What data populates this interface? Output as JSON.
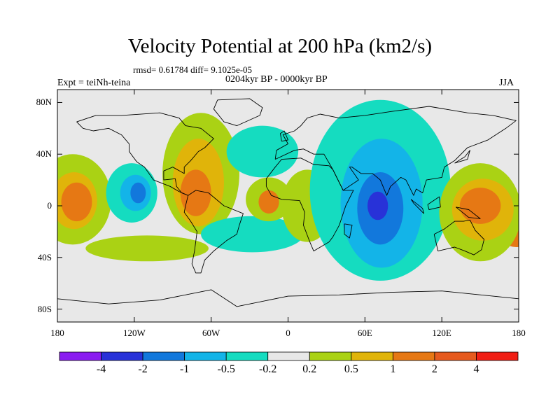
{
  "title": "Velocity Potential at 200 hPa (km2/s)",
  "stats_line": "rmsd= 0.61784 diff= 9.1025e-05",
  "period_line": "0204kyr BP - 0000kyr BP",
  "experiment_label": "Expt = teiNh-teina",
  "season_label": "JJA",
  "map": {
    "projection": "cylindrical-equidistant",
    "lon_range": [
      -180,
      180
    ],
    "lat_range": [
      -90,
      90
    ],
    "background_color": "#e8e8e8",
    "lat_ticks": [
      {
        "lat": 80,
        "label": "80N"
      },
      {
        "lat": 40,
        "label": "40N"
      },
      {
        "lat": 0,
        "label": "0"
      },
      {
        "lat": -40,
        "label": "40S"
      },
      {
        "lat": -80,
        "label": "80S"
      }
    ],
    "lon_ticks": [
      {
        "lon": -180,
        "label": "180"
      },
      {
        "lon": -120,
        "label": "120W"
      },
      {
        "lon": -60,
        "label": "60W"
      },
      {
        "lon": 0,
        "label": "0"
      },
      {
        "lon": 60,
        "label": "60E"
      },
      {
        "lon": 120,
        "label": "120E"
      },
      {
        "lon": 180,
        "label": "180"
      }
    ]
  },
  "colorbar": {
    "labels": [
      "-4",
      "-2",
      "-1",
      "-0.5",
      "-0.2",
      "0.2",
      "0.5",
      "1",
      "2",
      "4"
    ],
    "colors": [
      "#8a1cf0",
      "#2832d8",
      "#1278dc",
      "#13b4e8",
      "#15dcc0",
      "#e8e8e8",
      "#aad214",
      "#e0b40a",
      "#e67814",
      "#e65a1e",
      "#f01e14"
    ]
  },
  "anomaly_regions": [
    {
      "name": "pacific-east-high",
      "lon": -168,
      "lat": 5,
      "rlon": 30,
      "rlat": 35,
      "color": "#aad214"
    },
    {
      "name": "pacific-east-core",
      "lon": -167,
      "lat": 4,
      "rlon": 18,
      "rlat": 22,
      "color": "#e0b40a"
    },
    {
      "name": "pacific-east-center",
      "lon": -165,
      "lat": 3,
      "rlon": 12,
      "rlat": 15,
      "color": "#e67814"
    },
    {
      "name": "pacific-west-edge",
      "lon": 178,
      "lat": -22,
      "rlon": 12,
      "rlat": 10,
      "color": "#e67814"
    },
    {
      "name": "east-pacific-low",
      "lon": -122,
      "lat": 10,
      "rlon": 20,
      "rlat": 23,
      "color": "#15dcc0"
    },
    {
      "name": "east-pacific-low-core",
      "lon": -119,
      "lat": 10,
      "rlon": 12,
      "rlat": 14,
      "color": "#13b4e8"
    },
    {
      "name": "east-pacific-low-center",
      "lon": -117,
      "lat": 10,
      "rlon": 6,
      "rlat": 8,
      "color": "#1278dc"
    },
    {
      "name": "south-pacific-band",
      "lon": -110,
      "lat": -33,
      "rlon": 48,
      "rlat": 10,
      "color": "#aad214"
    },
    {
      "name": "americas-high",
      "lon": -68,
      "lat": 25,
      "rlon": 30,
      "rlat": 47,
      "color": "#aad214"
    },
    {
      "name": "americas-high-core",
      "lon": -70,
      "lat": 18,
      "rlon": 20,
      "rlat": 34,
      "color": "#e0b40a"
    },
    {
      "name": "americas-high-center",
      "lon": -72,
      "lat": 10,
      "rlon": 12,
      "rlat": 18,
      "color": "#e67814"
    },
    {
      "name": "atlantic-low-north",
      "lon": -20,
      "lat": 42,
      "rlon": 28,
      "rlat": 20,
      "color": "#15dcc0"
    },
    {
      "name": "atlantic-low-south",
      "lon": -28,
      "lat": -22,
      "rlon": 40,
      "rlat": 14,
      "color": "#15dcc0"
    },
    {
      "name": "atlantic-high",
      "lon": -15,
      "lat": 5,
      "rlon": 18,
      "rlat": 17,
      "color": "#aad214"
    },
    {
      "name": "atlantic-high-core",
      "lon": -15,
      "lat": 3,
      "rlon": 8,
      "rlat": 9,
      "color": "#e67814"
    },
    {
      "name": "africa-high",
      "lon": 15,
      "lat": 0,
      "rlon": 20,
      "rlat": 28,
      "color": "#aad214"
    },
    {
      "name": "indian-ocean-low",
      "lon": 72,
      "lat": 12,
      "rlon": 55,
      "rlat": 70,
      "color": "#15dcc0"
    },
    {
      "name": "indian-ocean-low-core",
      "lon": 73,
      "lat": 2,
      "rlon": 32,
      "rlat": 50,
      "color": "#13b4e8"
    },
    {
      "name": "indian-ocean-low-inner",
      "lon": 72,
      "lat": -2,
      "rlon": 18,
      "rlat": 28,
      "color": "#1278dc"
    },
    {
      "name": "indian-ocean-low-center",
      "lon": 70,
      "lat": 0,
      "rlon": 8,
      "rlat": 11,
      "color": "#2832d8"
    },
    {
      "name": "maritime-high",
      "lon": 150,
      "lat": -5,
      "rlon": 32,
      "rlat": 38,
      "color": "#aad214"
    },
    {
      "name": "maritime-high-core",
      "lon": 152,
      "lat": -3,
      "rlon": 24,
      "rlat": 24,
      "color": "#e0b40a"
    },
    {
      "name": "maritime-high-center",
      "lon": 150,
      "lat": 0,
      "rlon": 16,
      "rlat": 14,
      "color": "#e67814"
    }
  ]
}
